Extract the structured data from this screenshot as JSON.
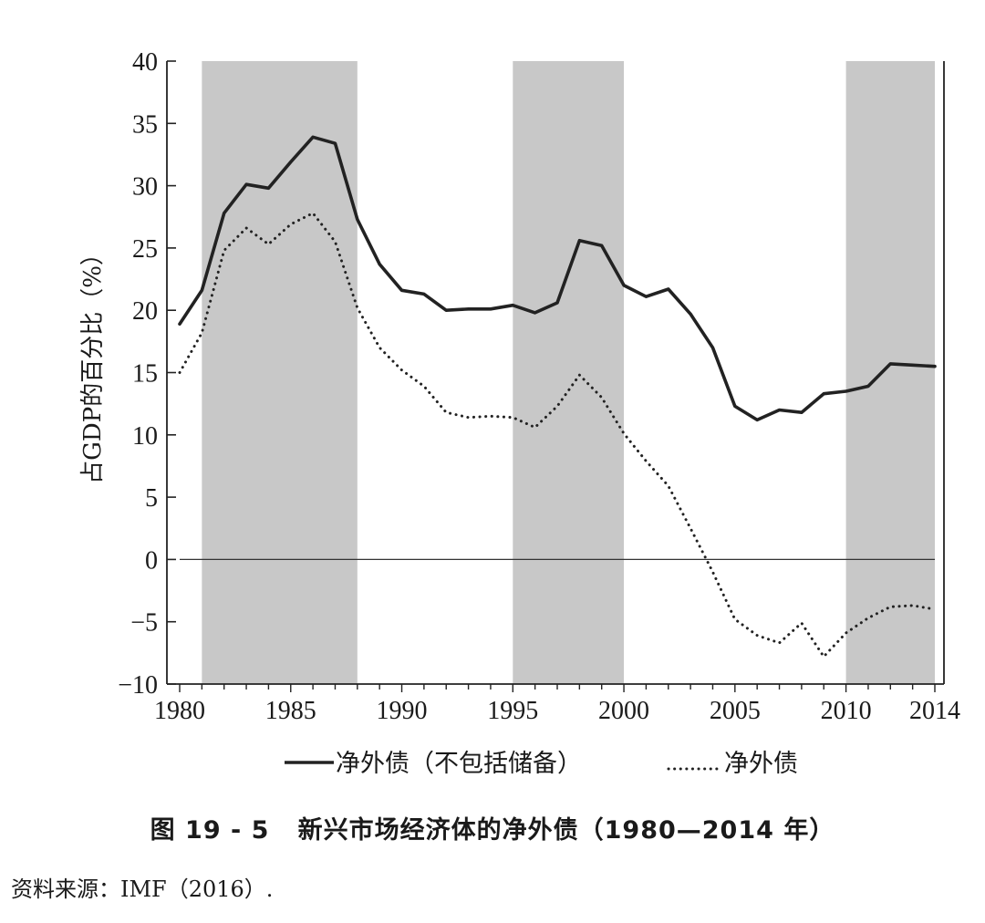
{
  "chart_data": {
    "type": "line",
    "ylabel": "占GDP的百分比（%）",
    "xlim": [
      1980,
      2014
    ],
    "ylim": [
      -10,
      40
    ],
    "x_ticks": [
      "1980",
      "1985",
      "1990",
      "1995",
      "2000",
      "2005",
      "2010",
      "2014"
    ],
    "y_ticks": [
      "40",
      "35",
      "30",
      "25",
      "20",
      "15",
      "10",
      "5",
      "0",
      "−5",
      "−10"
    ],
    "shaded_periods": [
      [
        1981,
        1988
      ],
      [
        1995,
        2000
      ],
      [
        2010,
        2014
      ]
    ],
    "shade_color": "#c8c8c8",
    "line_color": "#222222",
    "grid": false,
    "zero_line": true,
    "x": [
      1980,
      1981,
      1982,
      1983,
      1984,
      1985,
      1986,
      1987,
      1988,
      1989,
      1990,
      1991,
      1992,
      1993,
      1994,
      1995,
      1996,
      1997,
      1998,
      1999,
      2000,
      2001,
      2002,
      2003,
      2004,
      2005,
      2006,
      2007,
      2008,
      2009,
      2010,
      2011,
      2012,
      2013,
      2014
    ],
    "series": [
      {
        "name": "净外债（不包括储备）",
        "style": "solid",
        "values": [
          18.9,
          21.6,
          27.8,
          30.1,
          29.8,
          31.9,
          33.9,
          33.4,
          27.3,
          23.7,
          21.6,
          21.3,
          20.0,
          20.1,
          20.1,
          20.4,
          19.8,
          20.6,
          25.6,
          25.2,
          22.0,
          21.1,
          21.7,
          19.7,
          17.0,
          12.3,
          11.2,
          12.0,
          11.8,
          13.3,
          13.5,
          13.9,
          15.7,
          15.6,
          15.5
        ]
      },
      {
        "name": "净外债",
        "style": "dotted",
        "values": [
          15.0,
          18.2,
          24.8,
          26.6,
          25.3,
          26.9,
          27.8,
          25.5,
          20.2,
          17.0,
          15.2,
          13.9,
          11.8,
          11.4,
          11.5,
          11.4,
          10.6,
          12.3,
          14.8,
          13.0,
          10.1,
          7.9,
          5.9,
          2.5,
          -1.0,
          -4.8,
          -6.1,
          -6.7,
          -5.1,
          -7.8,
          -5.9,
          -4.7,
          -3.8,
          -3.7,
          -4.0
        ]
      }
    ],
    "legend_position": "bottom"
  },
  "caption": "图 19 - 5   新兴市场经济体的净外债（1980—2014 年）",
  "source": "资料来源：IMF（2016）."
}
